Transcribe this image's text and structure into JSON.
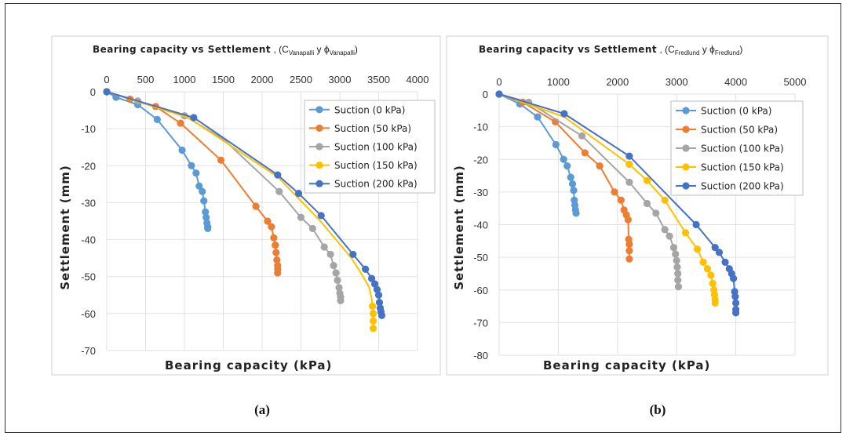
{
  "chart_data": [
    {
      "type": "line",
      "panel_label": "(a)",
      "title": {
        "main": "Bearing capacity vs Settlement",
        "sep": " , (",
        "c": "C",
        "c_sub": "Vanapalli",
        "y": " y ",
        "phi": "ϕ",
        "phi_sub": "Vanapalli",
        "close": ")"
      },
      "xlabel": "Bearing capacity",
      "xunit": " (kPa)",
      "ylabel": "Settlement",
      "yunit": " (mm)",
      "xlim": [
        0,
        4000
      ],
      "ylim": [
        -70,
        0
      ],
      "xticks": [
        "0",
        "500",
        "1000",
        "1500",
        "2000",
        "2500",
        "3000",
        "3500",
        "4000"
      ],
      "yticks": [
        "0",
        "-10",
        "-20",
        "-30",
        "-40",
        "-50",
        "-60",
        "-70"
      ],
      "legend_position": "top-right",
      "series": [
        {
          "name": "Suction (0 kPa)",
          "color": "#5b9bd5",
          "x": [
            0,
            120,
            400,
            650,
            970,
            1090,
            1150,
            1190,
            1230,
            1250,
            1270,
            1280,
            1290,
            1300,
            1300
          ],
          "y": [
            0,
            -1.5,
            -3.5,
            -7.5,
            -15.8,
            -20,
            -22,
            -25.5,
            -27,
            -29.5,
            -32.5,
            -34,
            -35.5,
            -36.5,
            -37
          ],
          "markers": [
            1,
            2,
            3,
            4,
            5,
            6,
            7,
            8,
            9,
            10,
            11,
            12,
            13,
            14
          ]
        },
        {
          "name": "Suction (50 kPa)",
          "color": "#ed7d31",
          "x": [
            0,
            300,
            630,
            950,
            1470,
            1920,
            2070,
            2120,
            2150,
            2170,
            2180,
            2190,
            2200,
            2200,
            2200
          ],
          "y": [
            0,
            -2,
            -4,
            -8.5,
            -18.5,
            -31,
            -35,
            -36.5,
            -39.5,
            -41.5,
            -43.5,
            -45.5,
            -47,
            -48,
            -49
          ],
          "markers": [
            0,
            1,
            2,
            3,
            4,
            5,
            6,
            7,
            8,
            9,
            10,
            11,
            12,
            13,
            14
          ]
        },
        {
          "name": "Suction (100 kPa)",
          "color": "#a5a5a5",
          "x": [
            0,
            400,
            1000,
            1500,
            2220,
            2500,
            2650,
            2800,
            2880,
            2920,
            2950,
            2970,
            2990,
            3000,
            3010,
            3010
          ],
          "y": [
            0,
            -2.5,
            -6.5,
            -12.8,
            -27,
            -34,
            -37,
            -42,
            -44,
            -47,
            -49,
            -51,
            -53,
            -54.5,
            -55.5,
            -56.5
          ],
          "markers": [
            0,
            1,
            2,
            4,
            5,
            6,
            7,
            8,
            9,
            10,
            11,
            12,
            13,
            14,
            15
          ]
        },
        {
          "name": "Suction (150 kPa)",
          "color": "#ffc000",
          "x": [
            0,
            1050,
            2200,
            2750,
            3150,
            3300,
            3380,
            3410,
            3420,
            3430,
            3430,
            3430
          ],
          "y": [
            0,
            -7,
            -23,
            -35,
            -45,
            -50,
            -53,
            -56,
            -58,
            -60,
            -62,
            -64
          ],
          "markers": [
            8,
            9,
            10,
            11
          ]
        },
        {
          "name": "Suction (200 kPa)",
          "color": "#4472c4",
          "x": [
            0,
            1120,
            2200,
            2470,
            2760,
            3170,
            3330,
            3410,
            3450,
            3480,
            3500,
            3510,
            3520,
            3530,
            3540
          ],
          "y": [
            0,
            -7,
            -22.5,
            -27.5,
            -33.5,
            -44,
            -48,
            -50.5,
            -52,
            -53.5,
            -55,
            -57,
            -58.5,
            -59.5,
            -60.5
          ],
          "markers": [
            0,
            1,
            2,
            3,
            4,
            5,
            6,
            7,
            8,
            9,
            10,
            11,
            12,
            13,
            14
          ]
        }
      ]
    },
    {
      "type": "line",
      "panel_label": "(b)",
      "title": {
        "main": "Bearing capacity vs Settlement",
        "sep": " , (",
        "c": "C",
        "c_sub": "Fredlund",
        "y": " y ",
        "phi": "ϕ",
        "phi_sub": "Fredlund",
        "close": ")"
      },
      "xlabel": "Bearing capacity",
      "xunit": " (kPa)",
      "ylabel": "Settlement",
      "yunit": " (mm)",
      "xlim": [
        0,
        5000
      ],
      "ylim": [
        -80,
        0
      ],
      "xticks": [
        "0",
        "1000",
        "2000",
        "3000",
        "4000",
        "5000"
      ],
      "yticks": [
        "0",
        "-10",
        "-20",
        "-30",
        "-40",
        "-50",
        "-60",
        "-70",
        "-80"
      ],
      "legend_position": "top-right",
      "series": [
        {
          "name": "Suction (0 kPa)",
          "color": "#5b9bd5",
          "x": [
            0,
            350,
            650,
            960,
            1090,
            1150,
            1210,
            1240,
            1260,
            1270,
            1280,
            1290,
            1300
          ],
          "y": [
            0,
            -3,
            -7,
            -15.5,
            -20,
            -22,
            -25.5,
            -27.5,
            -29.5,
            -32.5,
            -34,
            -35.5,
            -36.5
          ],
          "markers": [
            1,
            2,
            3,
            4,
            5,
            6,
            7,
            8,
            9,
            10,
            11,
            12
          ]
        },
        {
          "name": "Suction (50 kPa)",
          "color": "#ed7d31",
          "x": [
            0,
            400,
            950,
            1450,
            1700,
            1950,
            2060,
            2110,
            2150,
            2180,
            2190,
            2200,
            2200,
            2200
          ],
          "y": [
            0,
            -2.5,
            -8.5,
            -18,
            -22,
            -30,
            -32.5,
            -35.5,
            -37,
            -38.5,
            -44.5,
            -46,
            -48,
            -50.5
          ],
          "markers": [
            0,
            1,
            2,
            3,
            4,
            5,
            6,
            7,
            8,
            9,
            10,
            11,
            12,
            13
          ]
        },
        {
          "name": "Suction (100 kPa)",
          "color": "#a5a5a5",
          "x": [
            0,
            500,
            1400,
            2200,
            2500,
            2650,
            2800,
            2880,
            2950,
            2980,
            3000,
            3010,
            3020,
            3020,
            3030
          ],
          "y": [
            0,
            -2.5,
            -12.8,
            -27,
            -33.5,
            -36.5,
            -41.5,
            -43.5,
            -47,
            -49,
            -51,
            -53,
            -55,
            -57,
            -59
          ],
          "markers": [
            0,
            1,
            2,
            3,
            4,
            5,
            6,
            7,
            8,
            9,
            10,
            11,
            12,
            13,
            14
          ]
        },
        {
          "name": "Suction (150 kPa)",
          "color": "#ffc000",
          "x": [
            0,
            1100,
            2200,
            2500,
            2800,
            3150,
            3350,
            3450,
            3520,
            3580,
            3610,
            3630,
            3640,
            3650,
            3650
          ],
          "y": [
            0,
            -7,
            -21.5,
            -26.5,
            -32.5,
            -42.5,
            -47.5,
            -51.5,
            -53.5,
            -55.5,
            -58,
            -60,
            -61.5,
            -63,
            -64
          ],
          "markers": [
            2,
            3,
            4,
            5,
            6,
            7,
            8,
            9,
            10,
            11,
            12,
            13,
            14
          ]
        },
        {
          "name": "Suction (200 kPa)",
          "color": "#4472c4",
          "x": [
            0,
            1100,
            2200,
            3330,
            3650,
            3720,
            3820,
            3890,
            3930,
            3960,
            3980,
            3990,
            4000,
            4000,
            4000
          ],
          "y": [
            0,
            -6,
            -19,
            -40,
            -47,
            -48.5,
            -51.5,
            -53.5,
            -55,
            -56.5,
            -60.5,
            -62,
            -64,
            -66,
            -67
          ],
          "markers": [
            0,
            1,
            2,
            3,
            4,
            5,
            6,
            7,
            8,
            9,
            10,
            11,
            12,
            13,
            14
          ]
        }
      ]
    }
  ]
}
